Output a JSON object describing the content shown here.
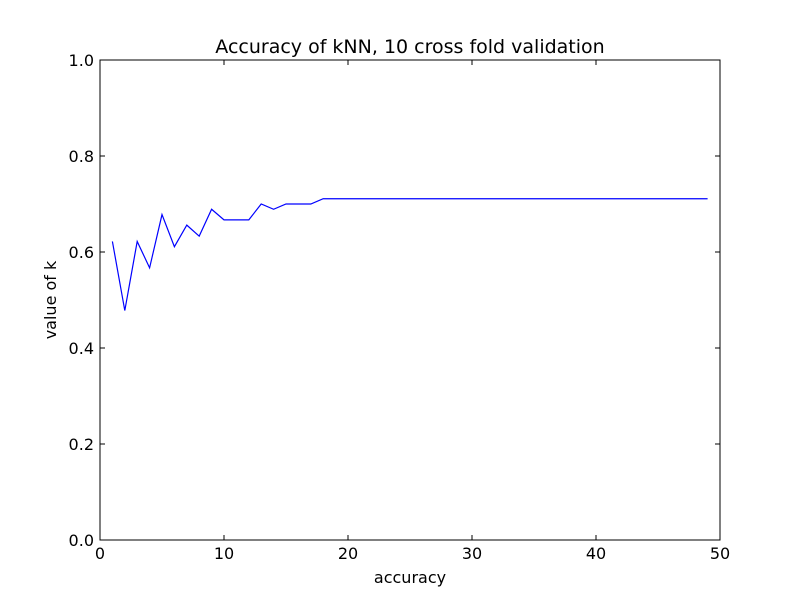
{
  "chart_data": {
    "type": "line",
    "title": "Accuracy of kNN, 10 cross fold validation",
    "xlabel": "accuracy",
    "ylabel": "value of k",
    "xlim": [
      0,
      50
    ],
    "ylim": [
      0.0,
      1.0
    ],
    "x_ticks": [
      "0",
      "10",
      "20",
      "30",
      "40",
      "50"
    ],
    "y_ticks": [
      "0.0",
      "0.2",
      "0.4",
      "0.6",
      "0.8",
      "1.0"
    ],
    "grid": false,
    "line_color": "#0000ff",
    "x": [
      1,
      2,
      3,
      4,
      5,
      6,
      7,
      8,
      9,
      10,
      11,
      12,
      13,
      14,
      15,
      16,
      17,
      18,
      19,
      20,
      21,
      22,
      23,
      24,
      25,
      26,
      27,
      28,
      29,
      30,
      31,
      32,
      33,
      34,
      35,
      36,
      37,
      38,
      39,
      40,
      41,
      42,
      43,
      44,
      45,
      46,
      47,
      48,
      49
    ],
    "y": [
      0.622,
      0.478,
      0.622,
      0.567,
      0.678,
      0.611,
      0.656,
      0.633,
      0.689,
      0.667,
      0.667,
      0.667,
      0.7,
      0.689,
      0.7,
      0.7,
      0.7,
      0.711,
      0.711,
      0.711,
      0.711,
      0.711,
      0.711,
      0.711,
      0.711,
      0.711,
      0.711,
      0.711,
      0.711,
      0.711,
      0.711,
      0.711,
      0.711,
      0.711,
      0.711,
      0.711,
      0.711,
      0.711,
      0.711,
      0.711,
      0.711,
      0.711,
      0.711,
      0.711,
      0.711,
      0.711,
      0.711,
      0.711,
      0.711
    ]
  }
}
